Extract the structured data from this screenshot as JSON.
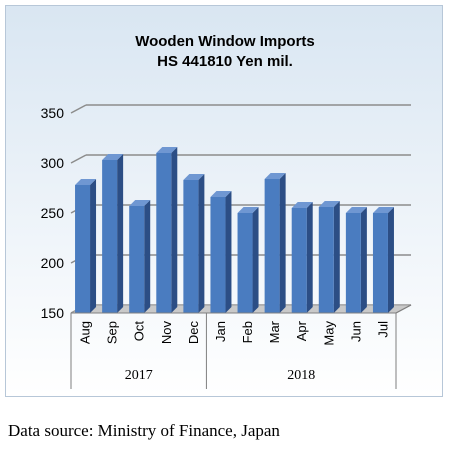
{
  "chart_data": {
    "type": "bar",
    "title": "Wooden Window Imports",
    "subtitle": "HS 441810 Yen mil.",
    "categories": [
      "Aug",
      "Sep",
      "Oct",
      "Nov",
      "Dec",
      "Jan",
      "Feb",
      "Mar",
      "Apr",
      "May",
      "Jun",
      "Jul"
    ],
    "groups": [
      {
        "label": "2017",
        "categories": [
          "Aug",
          "Sep",
          "Oct",
          "Nov",
          "Dec"
        ]
      },
      {
        "label": "2018",
        "categories": [
          "Jan",
          "Feb",
          "Mar",
          "Apr",
          "May",
          "Jun",
          "Jul"
        ]
      }
    ],
    "values": [
      278,
      303,
      257,
      310,
      283,
      266,
      250,
      284,
      255,
      256,
      250,
      250
    ],
    "ylim": [
      150,
      350
    ],
    "yticks": [
      150,
      200,
      250,
      300,
      350
    ],
    "grid": true,
    "legend": "none",
    "bar_color": "#4a7cc0",
    "three_d": true
  },
  "source": "Data source: Ministry of Finance, Japan"
}
